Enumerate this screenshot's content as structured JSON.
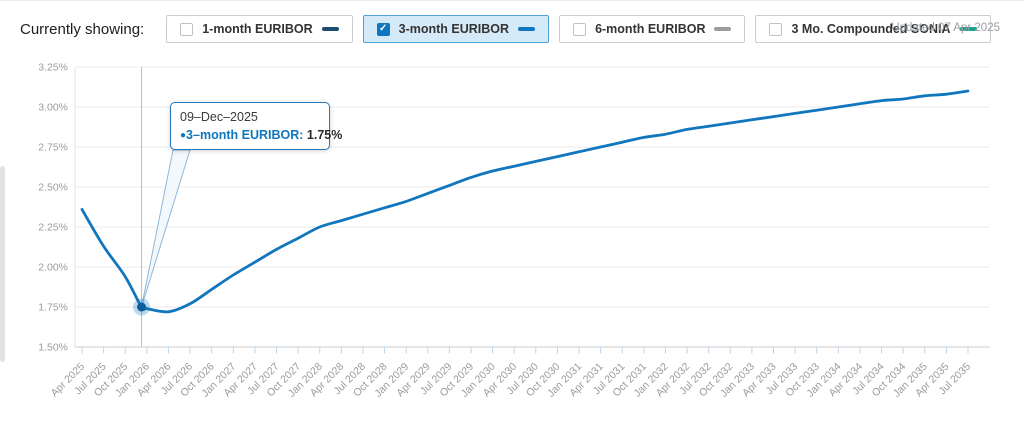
{
  "header": {
    "label": "Currently showing:",
    "updated": "Updated 07 Apr 2025",
    "series_toggles": [
      {
        "label": "1-month EURIBOR",
        "checked": false,
        "color": "#1c4c6e"
      },
      {
        "label": "3-month EURIBOR",
        "checked": true,
        "color": "#1076bd"
      },
      {
        "label": "6-month EURIBOR",
        "checked": false,
        "color": "#9c9c9c"
      },
      {
        "label": "3 Mo. Compounded SONIA",
        "checked": false,
        "color": "#10a391"
      }
    ],
    "check_glyph": "✓"
  },
  "tooltip": {
    "date": "09–Dec–2025",
    "bullet": "●",
    "series_label": "3–month EURIBOR:",
    "value": "1.75%"
  },
  "chart_data": {
    "type": "line",
    "title": "",
    "xlabel": "",
    "ylabel": "",
    "grid": true,
    "legend_position": "top",
    "ylim": [
      1.5,
      3.25
    ],
    "y_ticks": [
      "3.25%",
      "3.00%",
      "2.75%",
      "2.50%",
      "2.25%",
      "2.00%",
      "1.75%",
      "1.50%"
    ],
    "x": [
      "Apr 2025",
      "Jul 2025",
      "Oct 2025",
      "Jan 2026",
      "Apr 2026",
      "Jul 2026",
      "Oct 2026",
      "Jan 2027",
      "Apr 2027",
      "Jul 2027",
      "Oct 2027",
      "Jan 2028",
      "Apr 2028",
      "Jul 2028",
      "Oct 2028",
      "Jan 2029",
      "Apr 2029",
      "Jul 2029",
      "Oct 2029",
      "Jan 2030",
      "Apr 2030",
      "Jul 2030",
      "Oct 2030",
      "Jan 2031",
      "Apr 2031",
      "Jul 2031",
      "Oct 2031",
      "Jan 2032",
      "Apr 2032",
      "Jul 2032",
      "Oct 2032",
      "Jan 2033",
      "Apr 2033",
      "Jul 2033",
      "Oct 2033",
      "Jan 2034",
      "Apr 2034",
      "Jul 2034",
      "Oct 2034",
      "Jan 2035",
      "Apr 2035",
      "Jul 2035"
    ],
    "series": [
      {
        "name": "3-month EURIBOR",
        "color": "#1076bd",
        "values": [
          2.36,
          2.13,
          1.94,
          1.74,
          1.72,
          1.77,
          1.86,
          1.95,
          2.03,
          2.11,
          2.18,
          2.25,
          2.29,
          2.33,
          2.37,
          2.41,
          2.46,
          2.51,
          2.56,
          2.6,
          2.63,
          2.66,
          2.69,
          2.72,
          2.75,
          2.78,
          2.81,
          2.83,
          2.86,
          2.88,
          2.9,
          2.92,
          2.94,
          2.96,
          2.98,
          3.0,
          3.02,
          3.04,
          3.05,
          3.07,
          3.08,
          3.1
        ]
      }
    ],
    "highlight": {
      "date": "09-Dec-2025",
      "series": "3-month EURIBOR",
      "value": 1.75
    }
  }
}
